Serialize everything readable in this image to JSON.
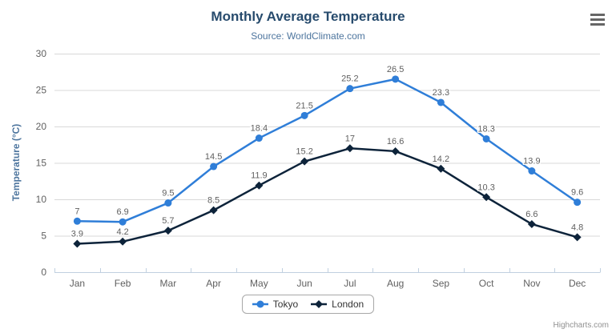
{
  "chart_data": {
    "type": "line",
    "title": "Monthly Average Temperature",
    "subtitle": "Source: WorldClimate.com",
    "categories": [
      "Jan",
      "Feb",
      "Mar",
      "Apr",
      "May",
      "Jun",
      "Jul",
      "Aug",
      "Sep",
      "Oct",
      "Nov",
      "Dec"
    ],
    "series": [
      {
        "name": "Tokyo",
        "color": "#2f7ed8",
        "marker": "circle",
        "values": [
          7,
          6.9,
          9.5,
          14.5,
          18.4,
          21.5,
          25.2,
          26.5,
          23.3,
          18.3,
          13.9,
          9.6
        ]
      },
      {
        "name": "London",
        "color": "#0d233a",
        "marker": "diamond",
        "values": [
          3.9,
          4.2,
          5.7,
          8.5,
          11.9,
          15.2,
          17,
          16.6,
          14.2,
          10.3,
          6.6,
          4.8
        ]
      }
    ],
    "xlabel": "",
    "ylabel": "Temperature (°C)",
    "ylim": [
      0,
      30
    ],
    "yticks": [
      0,
      5,
      10,
      15,
      20,
      25,
      30
    ],
    "grid": true,
    "data_labels": true,
    "legend_position": "bottom"
  },
  "styles": {
    "grid_color": "#d8d8d8",
    "axis_line_color": "#c0d0e0",
    "axis_label_color": "#606060",
    "data_label_color": "#606060",
    "title_color": "#274b6d",
    "subtitle_color": "#4d759e"
  },
  "header": {
    "menu_icon": "hamburger-menu-icon"
  },
  "credits": {
    "label": "Highcharts.com"
  }
}
